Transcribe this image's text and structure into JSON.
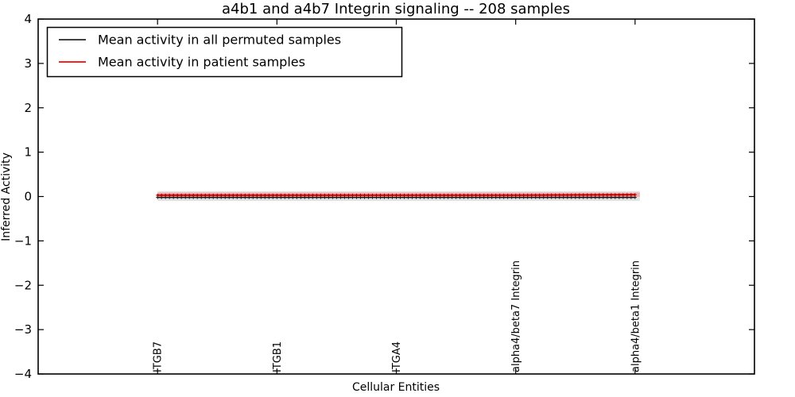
{
  "figure": {
    "title": "a4b1 and a4b7 Integrin signaling -- 208 samples",
    "xlabel": "Cellular Entities",
    "ylabel": "Inferred Activity"
  },
  "legend": {
    "position": "upper left",
    "entries": [
      {
        "label": "Mean activity in all permuted samples",
        "color": "#000000"
      },
      {
        "label": "Mean activity in patient samples",
        "color": "#ff0000"
      }
    ]
  },
  "chart_data": {
    "type": "line",
    "title": "a4b1 and a4b7 Integrin signaling -- 208 samples",
    "xlabel": "Cellular Entities",
    "ylabel": "Inferred Activity",
    "categories": [
      "ITGB7",
      "ITGB1",
      "ITGA4",
      "alpha4/beta7 Integrin",
      "alpha4/beta1 Integrin"
    ],
    "x_positions": [
      1,
      2,
      3,
      4,
      5
    ],
    "xlim": [
      0,
      6
    ],
    "ylim": [
      -4,
      4
    ],
    "yticks": [
      -4,
      -3,
      -2,
      -1,
      0,
      1,
      2,
      3,
      4
    ],
    "grid": false,
    "legend_position": "upper left",
    "series": [
      {
        "name": "Mean activity in all permuted samples",
        "color": "#000000",
        "marker": "+",
        "marker_color": "#1a1a1a",
        "line_width": 1.4,
        "values": [
          -0.02,
          -0.02,
          -0.02,
          -0.02,
          -0.02
        ]
      },
      {
        "name": "Mean activity in patient samples",
        "color": "#ff0000",
        "marker": "+",
        "marker_color": "#990000",
        "line_width": 2.2,
        "values": [
          0.03,
          0.03,
          0.03,
          0.03,
          0.04
        ]
      }
    ],
    "bands": [
      {
        "name": "permuted-samples-envelope",
        "color": "#000000",
        "opacity": 0.11,
        "low": -0.1,
        "high": 0.12
      },
      {
        "name": "patient-samples-envelope",
        "color": "#ff0000",
        "opacity": 0.22,
        "low": -0.01,
        "high": 0.09
      }
    ]
  }
}
